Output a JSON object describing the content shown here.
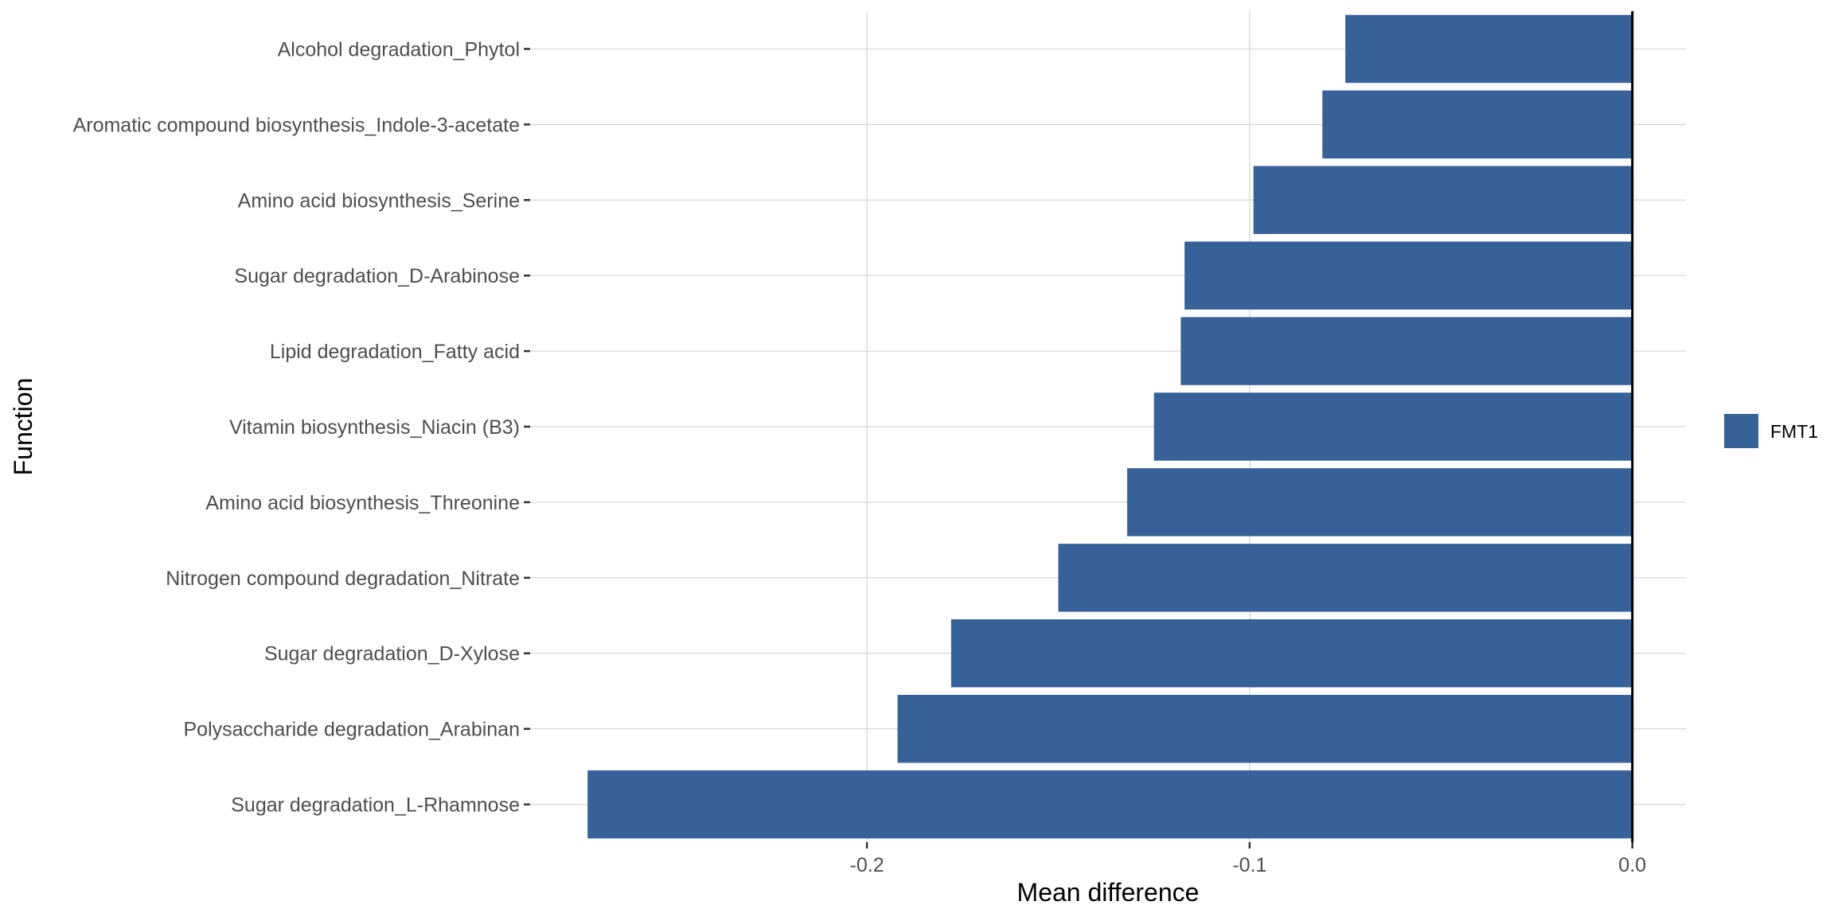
{
  "chart_data": {
    "type": "bar",
    "orientation": "horizontal",
    "xlabel": "Mean difference",
    "ylabel": "Function",
    "xlim": [
      -0.288,
      0.014
    ],
    "x_ticks": [
      "-0.2",
      "-0.1",
      "0.0"
    ],
    "x_tick_values": [
      -0.2,
      -0.1,
      0.0
    ],
    "grid": true,
    "legend_position": "right",
    "categories": [
      "Alcohol degradation_Phytol",
      "Aromatic compound biosynthesis_Indole-3-acetate",
      "Amino acid biosynthesis_Serine",
      "Sugar degradation_D-Arabinose",
      "Lipid degradation_Fatty acid",
      "Vitamin biosynthesis_Niacin (B3)",
      "Amino acid biosynthesis_Threonine",
      "Nitrogen compound degradation_Nitrate",
      "Sugar degradation_D-Xylose",
      "Polysaccharide degradation_Arabinan",
      "Sugar degradation_L-Rhamnose"
    ],
    "series": [
      {
        "name": "FMT1",
        "color": "#366299",
        "values": [
          -0.075,
          -0.081,
          -0.099,
          -0.117,
          -0.118,
          -0.125,
          -0.132,
          -0.15,
          -0.178,
          -0.192,
          -0.273
        ]
      }
    ]
  }
}
